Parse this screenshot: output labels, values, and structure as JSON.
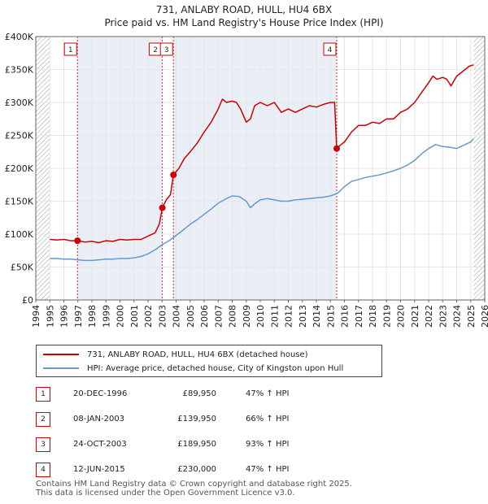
{
  "title": "731, ANLABY ROAD, HULL, HU4 6BX",
  "subtitle": "Price paid vs. HM Land Registry's House Price Index (HPI)",
  "colors": {
    "price": "#cc0000",
    "hpi": "#6699cc",
    "grid": "#e6e6e6",
    "shade": "#dce4f2",
    "hatch": "#999999"
  },
  "chart_data": {
    "type": "line",
    "title": "731, ANLABY ROAD, HULL, HU4 6BX",
    "subtitle": "Price paid vs. HM Land Registry's House Price Index (HPI)",
    "xlim": [
      1994.0,
      2026.0
    ],
    "ylim": [
      0,
      400000
    ],
    "x_ticks": [
      1994,
      1995,
      1996,
      1997,
      1998,
      1999,
      2000,
      2001,
      2002,
      2003,
      2004,
      2005,
      2006,
      2007,
      2008,
      2009,
      2010,
      2011,
      2012,
      2013,
      2014,
      2015,
      2016,
      2017,
      2018,
      2019,
      2020,
      2021,
      2022,
      2023,
      2024,
      2025,
      2026
    ],
    "y_ticks": [
      {
        "value": 0,
        "label": "£0"
      },
      {
        "value": 50000,
        "label": "£50K"
      },
      {
        "value": 100000,
        "label": "£100K"
      },
      {
        "value": 150000,
        "label": "£150K"
      },
      {
        "value": 200000,
        "label": "£200K"
      },
      {
        "value": 250000,
        "label": "£250K"
      },
      {
        "value": 300000,
        "label": "£300K"
      },
      {
        "value": 350000,
        "label": "£350K"
      },
      {
        "value": 400000,
        "label": "£400K"
      }
    ],
    "data_start": 1995.0,
    "data_end": 2025.2,
    "shaded_spans": [
      [
        1996.97,
        2003.02
      ],
      [
        2003.81,
        2015.45
      ]
    ],
    "series": [
      {
        "name": "731, ANLABY ROAD, HULL, HU4 6BX (detached house)",
        "color": "#cc0000",
        "x": [
          1995.0,
          1995.5,
          1996.0,
          1996.5,
          1996.97,
          1997.5,
          1998.0,
          1998.5,
          1999.0,
          1999.5,
          2000.0,
          2000.5,
          2001.0,
          2001.5,
          2002.0,
          2002.5,
          2002.8,
          2003.02,
          2003.3,
          2003.6,
          2003.81,
          2004.2,
          2004.6,
          2005.0,
          2005.5,
          2006.0,
          2006.5,
          2007.0,
          2007.3,
          2007.6,
          2008.0,
          2008.3,
          2008.6,
          2009.0,
          2009.3,
          2009.6,
          2010.0,
          2010.5,
          2011.0,
          2011.5,
          2012.0,
          2012.5,
          2013.0,
          2013.5,
          2014.0,
          2014.5,
          2015.0,
          2015.3,
          2015.45,
          2015.7,
          2016.0,
          2016.5,
          2017.0,
          2017.5,
          2018.0,
          2018.5,
          2019.0,
          2019.5,
          2020.0,
          2020.5,
          2021.0,
          2021.5,
          2022.0,
          2022.3,
          2022.6,
          2023.0,
          2023.3,
          2023.6,
          2024.0,
          2024.3,
          2024.6,
          2024.9,
          2025.2
        ],
        "values": [
          92000,
          91000,
          92000,
          90000,
          89950,
          88000,
          89000,
          87000,
          90000,
          89000,
          92000,
          91000,
          92000,
          92000,
          97000,
          102000,
          115000,
          139950,
          152000,
          160000,
          189950,
          200000,
          215000,
          225000,
          238000,
          255000,
          270000,
          290000,
          305000,
          300000,
          302000,
          300000,
          290000,
          270000,
          275000,
          295000,
          300000,
          295000,
          300000,
          285000,
          290000,
          285000,
          290000,
          295000,
          293000,
          297000,
          300000,
          300000,
          230000,
          235000,
          240000,
          255000,
          265000,
          265000,
          270000,
          268000,
          275000,
          275000,
          285000,
          290000,
          300000,
          315000,
          330000,
          340000,
          335000,
          338000,
          335000,
          325000,
          340000,
          345000,
          350000,
          355000,
          357000
        ]
      },
      {
        "name": "HPI: Average price, detached house, City of Kingston upon Hull",
        "color": "#6699cc",
        "x": [
          1995.0,
          1995.5,
          1996.0,
          1996.5,
          1997.0,
          1997.5,
          1998.0,
          1998.5,
          1999.0,
          1999.5,
          2000.0,
          2000.5,
          2001.0,
          2001.5,
          2002.0,
          2002.5,
          2003.0,
          2003.5,
          2004.0,
          2004.5,
          2005.0,
          2005.5,
          2006.0,
          2006.5,
          2007.0,
          2007.5,
          2008.0,
          2008.5,
          2009.0,
          2009.3,
          2009.6,
          2010.0,
          2010.5,
          2011.0,
          2011.5,
          2012.0,
          2012.5,
          2013.0,
          2013.5,
          2014.0,
          2014.5,
          2015.0,
          2015.5,
          2016.0,
          2016.5,
          2017.0,
          2017.5,
          2018.0,
          2018.5,
          2019.0,
          2019.5,
          2020.0,
          2020.5,
          2021.0,
          2021.5,
          2022.0,
          2022.5,
          2023.0,
          2023.5,
          2024.0,
          2024.5,
          2025.0,
          2025.2
        ],
        "values": [
          63000,
          63000,
          62000,
          62000,
          61000,
          60000,
          60000,
          61000,
          62000,
          62000,
          63000,
          63000,
          64000,
          66000,
          70000,
          76000,
          84000,
          90000,
          98000,
          106000,
          115000,
          122000,
          130000,
          138000,
          147000,
          153000,
          158000,
          157000,
          150000,
          140000,
          146000,
          152000,
          154000,
          152000,
          150000,
          150000,
          152000,
          153000,
          154000,
          155000,
          156000,
          158000,
          162000,
          172000,
          180000,
          183000,
          186000,
          188000,
          190000,
          193000,
          196000,
          200000,
          205000,
          212000,
          222000,
          230000,
          236000,
          233000,
          232000,
          230000,
          235000,
          240000,
          245000
        ]
      }
    ],
    "annotations": [
      {
        "label": "1",
        "x": 1996.97,
        "y": 89950
      },
      {
        "label": "2",
        "x": 2003.02,
        "y": 139950
      },
      {
        "label": "3",
        "x": 2003.81,
        "y": 189950
      },
      {
        "label": "4",
        "x": 2015.45,
        "y": 230000
      }
    ]
  },
  "legend": {
    "price_label": "731, ANLABY ROAD, HULL, HU4 6BX (detached house)",
    "hpi_label": "HPI: Average price, detached house, City of Kingston upon Hull"
  },
  "sales": [
    {
      "num": "1",
      "date": "20-DEC-1996",
      "price": "£89,950",
      "hpi": "47% ↑ HPI"
    },
    {
      "num": "2",
      "date": "08-JAN-2003",
      "price": "£139,950",
      "hpi": "66% ↑ HPI"
    },
    {
      "num": "3",
      "date": "24-OCT-2003",
      "price": "£189,950",
      "hpi": "93% ↑ HPI"
    },
    {
      "num": "4",
      "date": "12-JUN-2015",
      "price": "£230,000",
      "hpi": "47% ↑ HPI"
    }
  ],
  "footer": {
    "line1": "Contains HM Land Registry data © Crown copyright and database right 2025.",
    "line2": "This data is licensed under the Open Government Licence v3.0."
  }
}
